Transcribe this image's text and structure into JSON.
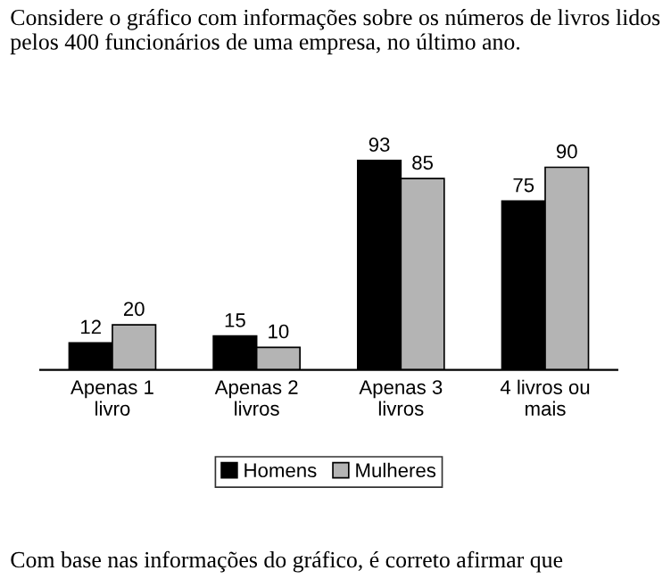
{
  "chart_data": {
    "type": "bar",
    "title": "Considere o gráfico com informações sobre os números de livros lidos pelos 400 funcionários de uma empresa, no último ano.",
    "annotations": [
      "Com base nas informações do gráfico, é correto afirmar que"
    ],
    "categories": [
      "Apenas 1\nlivro",
      "Apenas 2\nlivros",
      "Apenas 3\nlivros",
      "4 livros ou\nmais"
    ],
    "series": [
      {
        "name": "Homens",
        "color": "#000000",
        "values": [
          12,
          15,
          93,
          75
        ]
      },
      {
        "name": "Mulheres",
        "color": "#b4b4b4",
        "values": [
          20,
          10,
          85,
          90
        ]
      }
    ],
    "data_labels": true,
    "legend": "bottom",
    "grid": false
  }
}
